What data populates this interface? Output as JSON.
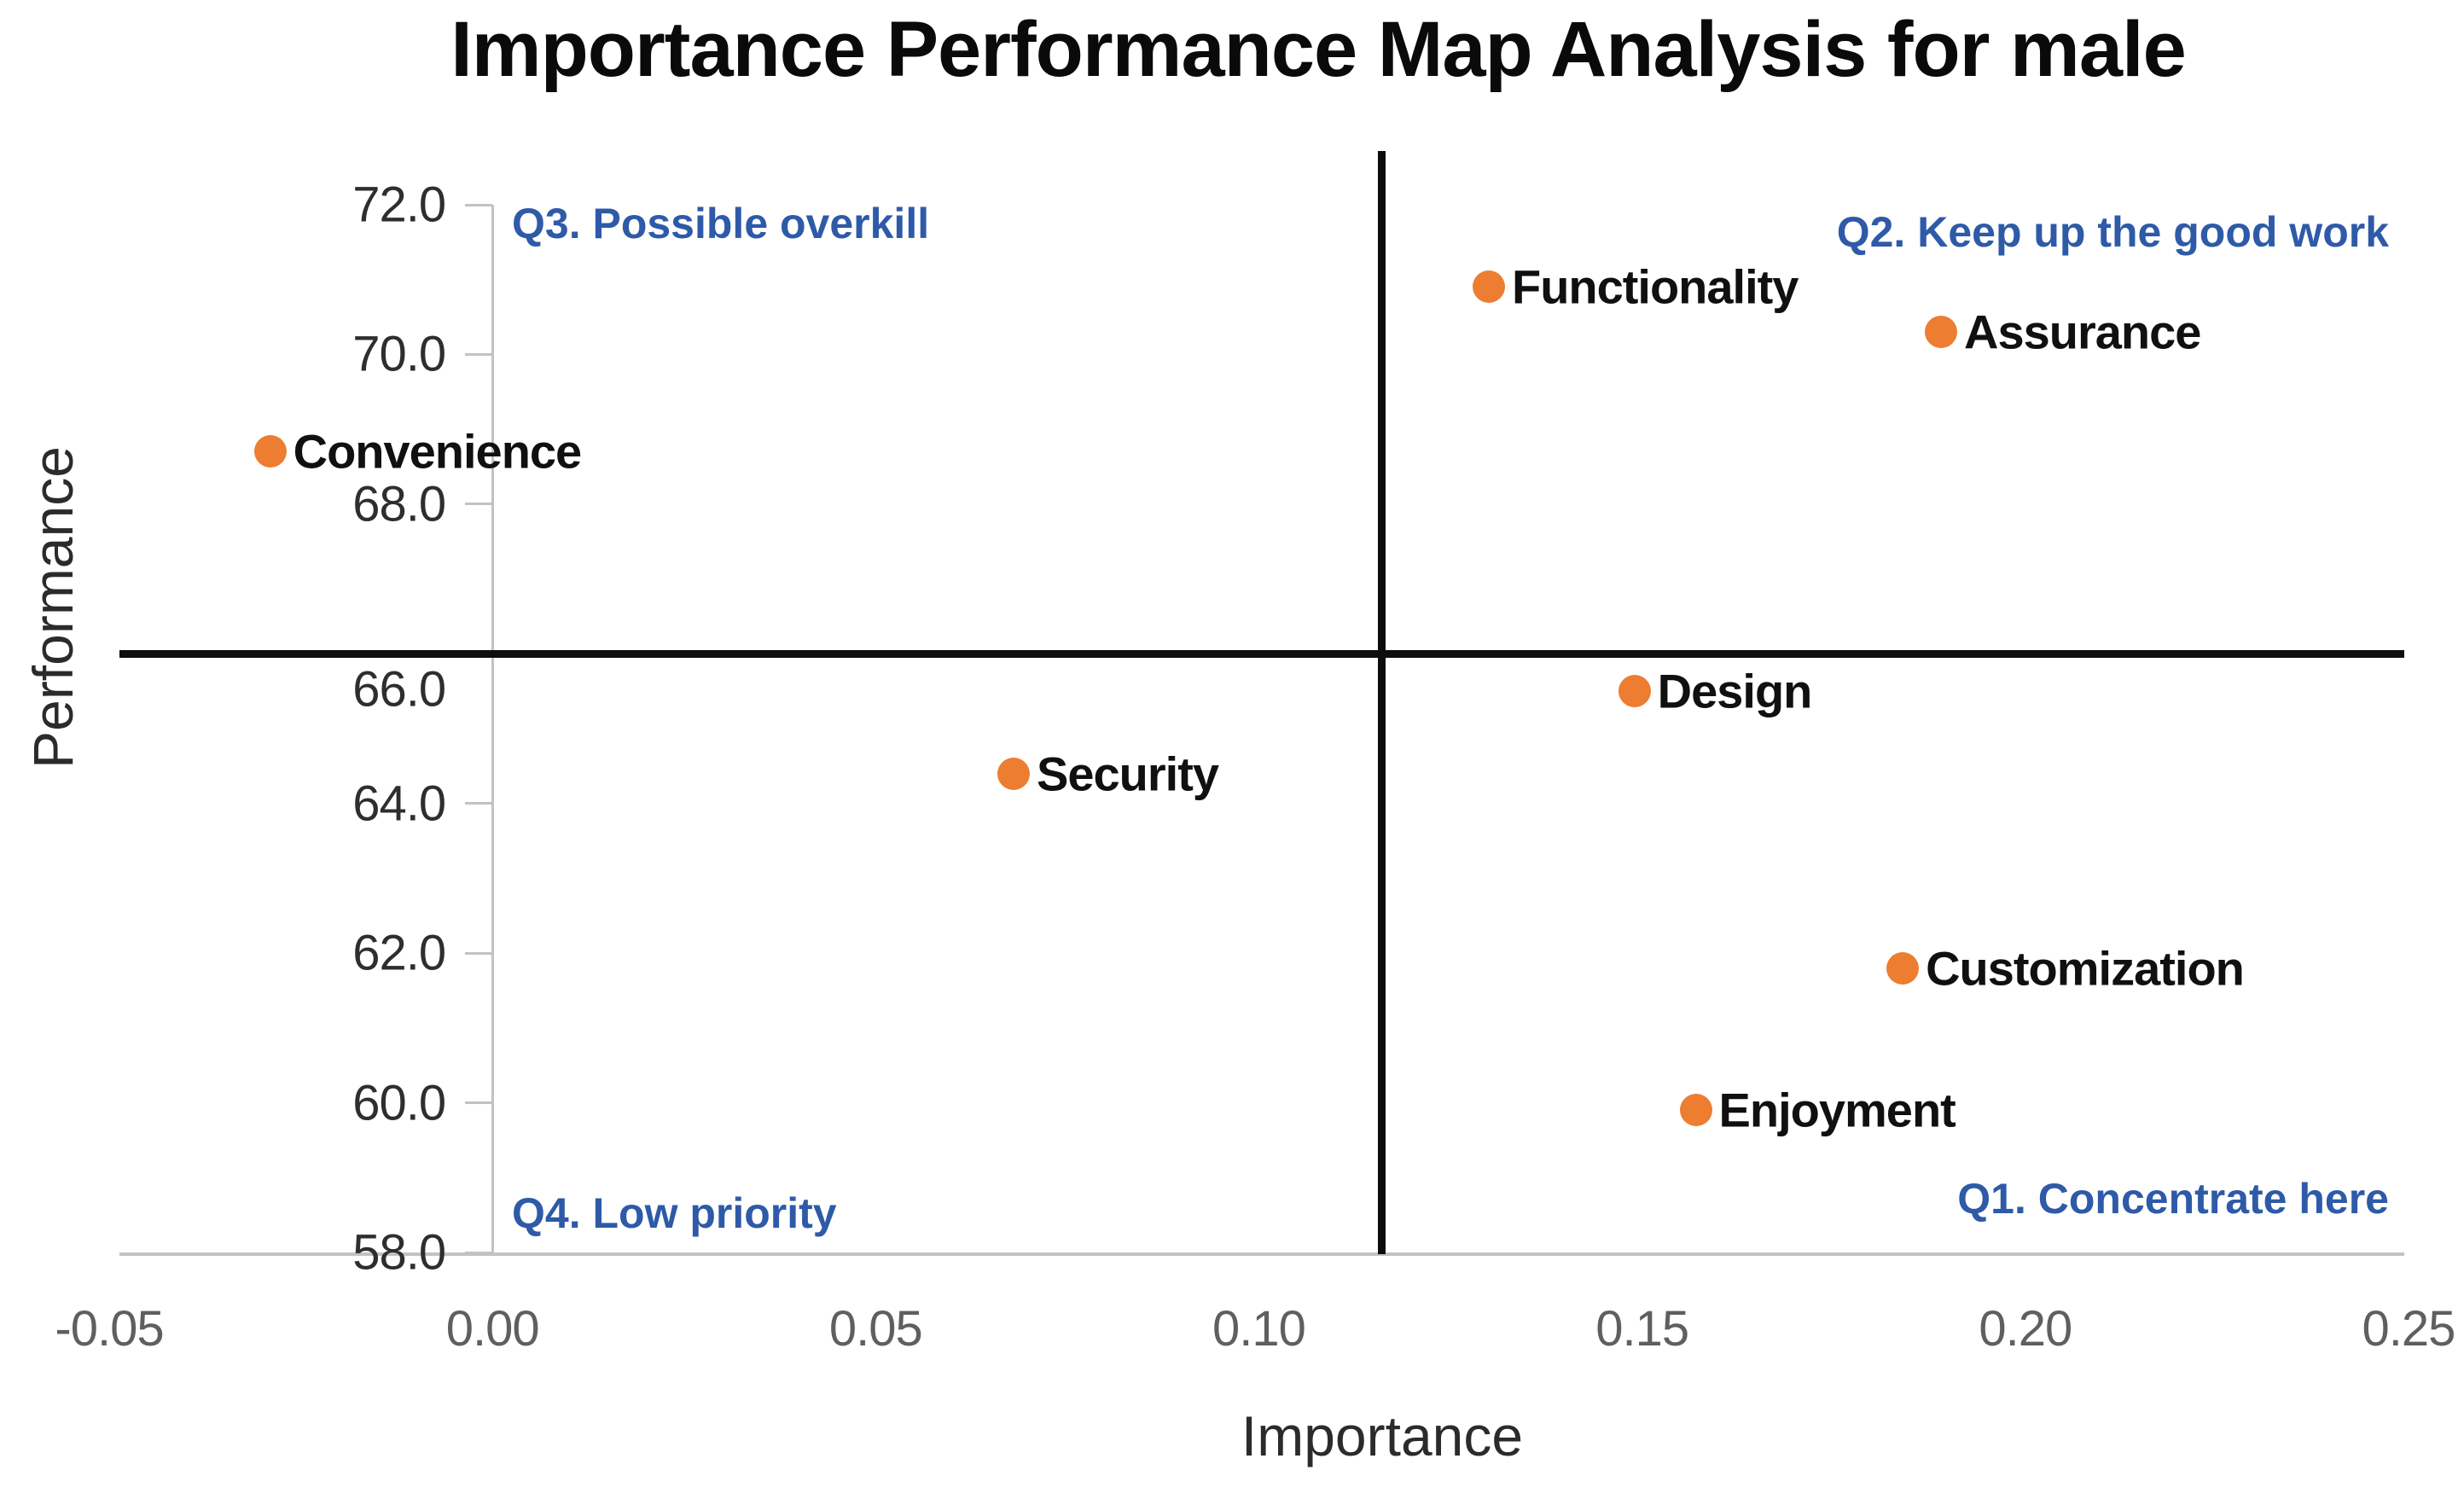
{
  "chart_data": {
    "type": "scatter",
    "title": "Importance Performance Map Analysis for male",
    "xlabel": "Importance",
    "ylabel": "Performance",
    "xlim": [
      -0.05,
      0.25
    ],
    "ylim": [
      58.0,
      72.0
    ],
    "x_ticks": [
      "-0.05",
      "0.00",
      "0.05",
      "0.10",
      "0.15",
      "0.20",
      "0.25"
    ],
    "y_ticks": [
      "72.0",
      "70.0",
      "68.0",
      "66.0",
      "64.0",
      "62.0",
      "60.0",
      "58.0"
    ],
    "grid": false,
    "legend": false,
    "series": [
      {
        "name": "constructs",
        "marker": "circle",
        "points": [
          {
            "label": "Convenience",
            "x": -0.029,
            "y": 68.7
          },
          {
            "label": "Functionality",
            "x": 0.13,
            "y": 70.9
          },
          {
            "label": "Assurance",
            "x": 0.189,
            "y": 70.3
          },
          {
            "label": "Design",
            "x": 0.149,
            "y": 65.5
          },
          {
            "label": "Security",
            "x": 0.068,
            "y": 64.4
          },
          {
            "label": "Customization",
            "x": 0.184,
            "y": 61.8
          },
          {
            "label": "Enjoyment",
            "x": 0.157,
            "y": 59.9
          }
        ]
      }
    ],
    "crosshair": {
      "x": 0.116,
      "y": 66.0
    },
    "annotations": [
      {
        "label": "Q3. Possible overkill",
        "position": "top-left"
      },
      {
        "label": "Q2. Keep up the good work",
        "position": "top-right"
      },
      {
        "label": "Q4. Low priority",
        "position": "bottom-left"
      },
      {
        "label": "Q1. Concentrate here",
        "position": "bottom-right"
      }
    ]
  },
  "colors": {
    "marker": "#ED7D31",
    "quadrant_text": "#2E5AA8",
    "crosshair": "#0D0D0D",
    "axis_line": "#C2C2C2",
    "y_tick_text": "#2E2E2E",
    "x_tick_text": "#5F5F5F",
    "title_text": "#0A0A0A",
    "point_label_text": "#101010"
  }
}
